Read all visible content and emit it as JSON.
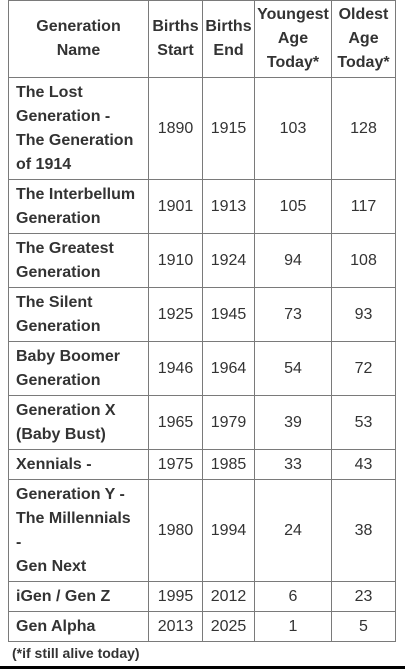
{
  "headers": {
    "name": "Generation Name",
    "start": "Births Start",
    "end": "Births End",
    "youngest": "Youngest Age Today*",
    "oldest": "Oldest Age Today*"
  },
  "header_lines": {
    "name": [
      "Generation",
      "Name"
    ],
    "start": [
      "Births",
      "Start"
    ],
    "end": [
      "Births",
      "End"
    ],
    "youngest": [
      "Youngest",
      "Age",
      "Today*"
    ],
    "oldest": [
      "Oldest",
      "Age",
      "Today*"
    ]
  },
  "rows": [
    {
      "name_lines": [
        "The Lost",
        "Generation -",
        "The Generation",
        "of 1914"
      ],
      "start": "1890",
      "end": "1915",
      "youngest": "103",
      "oldest": "128"
    },
    {
      "name_lines": [
        "The Interbellum",
        "Generation"
      ],
      "start": "1901",
      "end": "1913",
      "youngest": "105",
      "oldest": "117"
    },
    {
      "name_lines": [
        "The Greatest",
        "Generation"
      ],
      "start": "1910",
      "end": "1924",
      "youngest": "94",
      "oldest": "108"
    },
    {
      "name_lines": [
        "The Silent",
        "Generation"
      ],
      "start": "1925",
      "end": "1945",
      "youngest": "73",
      "oldest": "93"
    },
    {
      "name_lines": [
        "Baby Boomer",
        "Generation"
      ],
      "start": "1946",
      "end": "1964",
      "youngest": "54",
      "oldest": "72"
    },
    {
      "name_lines": [
        "Generation X",
        "(Baby Bust)"
      ],
      "start": "1965",
      "end": "1979",
      "youngest": "39",
      "oldest": "53"
    },
    {
      "name_lines": [
        "Xennials -"
      ],
      "start": "1975",
      "end": "1985",
      "youngest": "33",
      "oldest": "43"
    },
    {
      "name_lines": [
        "Generation Y -",
        "The Millennials",
        "-",
        "Gen Next"
      ],
      "start": "1980",
      "end": "1994",
      "youngest": "24",
      "oldest": "38"
    },
    {
      "name_lines": [
        "iGen / Gen Z"
      ],
      "start": "1995",
      "end": "2012",
      "youngest": "6",
      "oldest": "23"
    },
    {
      "name_lines": [
        "Gen Alpha"
      ],
      "start": "2013",
      "end": "2025",
      "youngest": "1",
      "oldest": "5"
    }
  ],
  "footnote": "(*if still alive today)"
}
